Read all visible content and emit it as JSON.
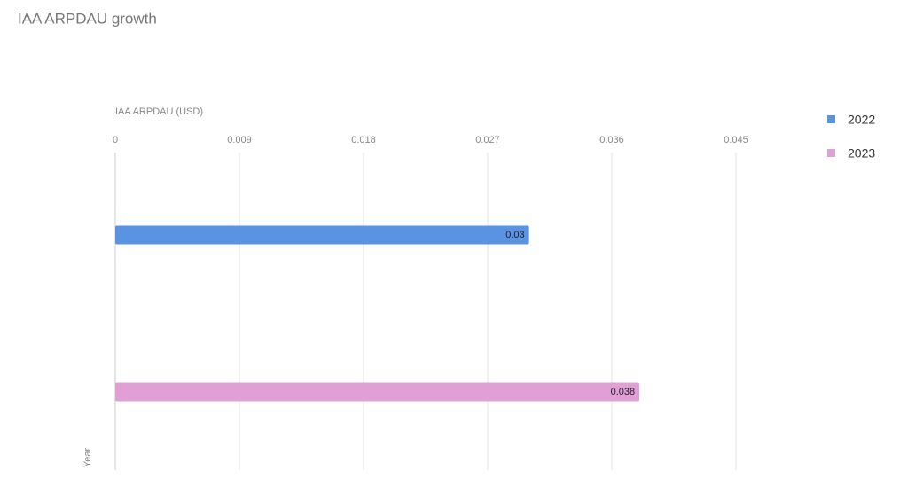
{
  "chart_data": {
    "type": "hbar",
    "title": "IAA ARPDAU growth",
    "x_label": "IAA ARPDAU (USD)",
    "y_label": "Year",
    "categories": [
      null
    ],
    "series": [
      {
        "name": "2022",
        "color": "#5b93e3",
        "values": [
          0.03
        ]
      },
      {
        "name": "2023",
        "color": "#e0a0d6",
        "values": [
          0.038
        ]
      }
    ],
    "xlim": [
      0,
      0.045
    ],
    "xticks": [
      0,
      0.009,
      0.018,
      0.027,
      0.036,
      0.045
    ],
    "grid": true,
    "legend": "right"
  }
}
